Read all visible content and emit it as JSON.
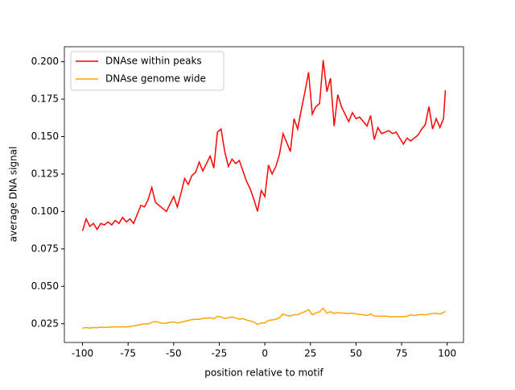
{
  "chart_data": {
    "type": "line",
    "xlabel": "position relative to motif",
    "ylabel": "average DNA signal",
    "x": [
      -100,
      -98,
      -96,
      -94,
      -92,
      -90,
      -88,
      -86,
      -84,
      -82,
      -80,
      -78,
      -76,
      -74,
      -72,
      -70,
      -68,
      -66,
      -64,
      -62,
      -60,
      -58,
      -56,
      -54,
      -52,
      -50,
      -48,
      -46,
      -44,
      -42,
      -40,
      -38,
      -36,
      -34,
      -32,
      -30,
      -28,
      -26,
      -24,
      -22,
      -20,
      -18,
      -16,
      -14,
      -12,
      -10,
      -8,
      -6,
      -4,
      -2,
      0,
      2,
      4,
      6,
      8,
      10,
      12,
      14,
      16,
      18,
      20,
      22,
      24,
      26,
      28,
      30,
      32,
      34,
      36,
      38,
      40,
      42,
      44,
      46,
      48,
      50,
      52,
      54,
      56,
      58,
      60,
      62,
      64,
      66,
      68,
      70,
      72,
      74,
      76,
      78,
      80,
      82,
      84,
      86,
      88,
      90,
      92,
      94,
      96,
      98,
      99
    ],
    "series": [
      {
        "name": "DNAse within peaks",
        "color": "#ff0000",
        "values": [
          0.087,
          0.095,
          0.09,
          0.092,
          0.088,
          0.092,
          0.091,
          0.093,
          0.091,
          0.094,
          0.092,
          0.096,
          0.093,
          0.095,
          0.092,
          0.098,
          0.104,
          0.103,
          0.108,
          0.116,
          0.106,
          0.104,
          0.102,
          0.1,
          0.105,
          0.11,
          0.103,
          0.112,
          0.122,
          0.118,
          0.124,
          0.126,
          0.133,
          0.127,
          0.132,
          0.137,
          0.129,
          0.153,
          0.155,
          0.14,
          0.13,
          0.135,
          0.132,
          0.134,
          0.127,
          0.12,
          0.115,
          0.108,
          0.1,
          0.114,
          0.11,
          0.131,
          0.125,
          0.13,
          0.138,
          0.152,
          0.146,
          0.14,
          0.162,
          0.155,
          0.168,
          0.18,
          0.193,
          0.165,
          0.17,
          0.172,
          0.201,
          0.18,
          0.189,
          0.157,
          0.178,
          0.17,
          0.165,
          0.16,
          0.166,
          0.162,
          0.163,
          0.16,
          0.157,
          0.164,
          0.148,
          0.156,
          0.152,
          0.153,
          0.154,
          0.152,
          0.153,
          0.149,
          0.145,
          0.149,
          0.147,
          0.149,
          0.151,
          0.155,
          0.158,
          0.17,
          0.155,
          0.162,
          0.156,
          0.162,
          0.181
        ]
      },
      {
        "name": "DNAse genome wide",
        "color": "#ffa500",
        "values": [
          0.022,
          0.0225,
          0.022,
          0.0225,
          0.0223,
          0.0228,
          0.0225,
          0.0228,
          0.0227,
          0.023,
          0.0228,
          0.023,
          0.0228,
          0.0232,
          0.0235,
          0.024,
          0.0245,
          0.025,
          0.0248,
          0.026,
          0.0265,
          0.0258,
          0.0252,
          0.0255,
          0.026,
          0.0262,
          0.0255,
          0.026,
          0.0265,
          0.0272,
          0.0278,
          0.028,
          0.028,
          0.0285,
          0.0288,
          0.029,
          0.0282,
          0.03,
          0.0295,
          0.0285,
          0.029,
          0.0295,
          0.0288,
          0.028,
          0.0285,
          0.0275,
          0.0268,
          0.0262,
          0.0245,
          0.0255,
          0.0255,
          0.0272,
          0.0275,
          0.028,
          0.029,
          0.0315,
          0.0305,
          0.0302,
          0.031,
          0.031,
          0.0322,
          0.033,
          0.0345,
          0.031,
          0.0322,
          0.033,
          0.0355,
          0.032,
          0.033,
          0.0318,
          0.0325,
          0.0322,
          0.032,
          0.0318,
          0.0322,
          0.0315,
          0.0312,
          0.031,
          0.0305,
          0.0315,
          0.03,
          0.0302,
          0.03,
          0.0302,
          0.0298,
          0.0296,
          0.0298,
          0.0296,
          0.0298,
          0.03,
          0.031,
          0.0305,
          0.031,
          0.0312,
          0.031,
          0.0315,
          0.0318,
          0.032,
          0.0315,
          0.0325,
          0.0332
        ]
      }
    ],
    "xlim": [
      -109.95,
      108.95
    ],
    "xticks": [
      -100,
      -75,
      -50,
      -25,
      0,
      25,
      50,
      75,
      100
    ],
    "ylim": [
      0.0125,
      0.21
    ],
    "yticks": [
      0.025,
      {
        "value": 0.05,
        "label": "0.050"
      },
      0.075,
      {
        "value": 0.1,
        "label": "0.100"
      },
      0.125,
      {
        "value": 0.15,
        "label": "0.150"
      },
      0.175,
      {
        "value": 0.2,
        "label": "0.200"
      }
    ],
    "legend": "upper left"
  }
}
